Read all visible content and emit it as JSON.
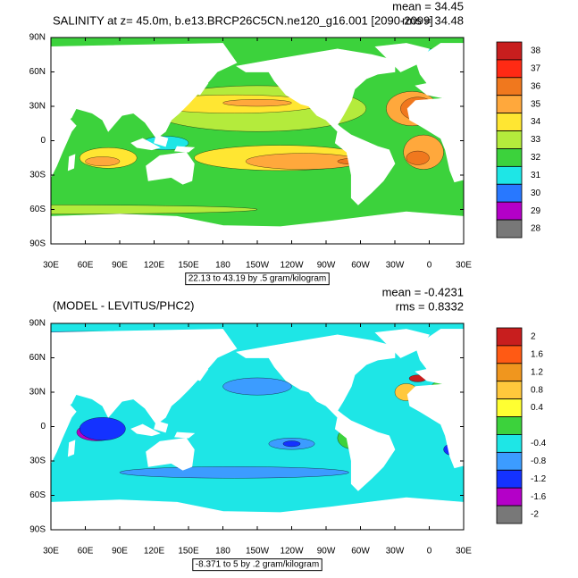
{
  "panels": [
    {
      "title": "SALINITY at z=  45.0m, b.e13.BRCP26C5CN.ne120_g16.001 [2090-2099]",
      "stats": [
        "mean = 34.45",
        "rms = 34.48"
      ],
      "info": "22.13 to 43.19 by .5 gram/kilogram",
      "colorbar": {
        "labels": [
          "38",
          "37",
          "36",
          "35",
          "34",
          "33",
          "32",
          "31",
          "30",
          "29",
          "28"
        ],
        "colors": [
          "#c81e1e",
          "#ff2a14",
          "#f0781e",
          "#ffa83c",
          "#ffe632",
          "#b4eb3c",
          "#3cd23c",
          "#1ee6e6",
          "#2878ff",
          "#b400c8",
          "#787878"
        ]
      }
    },
    {
      "title": "(MODEL - LEVITUS/PHC2)",
      "stats": [
        "mean = -0.4231",
        "rms = 0.8332"
      ],
      "info": "-8.371 to 5 by .2 gram/kilogram",
      "colorbar": {
        "labels": [
          "2",
          "1.6",
          "1.2",
          "0.8",
          "0.4",
          null,
          "-0.4",
          "-0.8",
          "-1.2",
          "-1.6",
          "-2"
        ],
        "colors": [
          "#c81e1e",
          "#ff5a14",
          "#f0961e",
          "#ffc83c",
          "#ffff32",
          "#3cd23c",
          "#1ee6e6",
          "#3c9cff",
          "#1432ff",
          "#b400c8",
          "#787878"
        ]
      }
    }
  ],
  "lat_labels": [
    "90N",
    "60N",
    "30N",
    "0",
    "30S",
    "60S",
    "90S"
  ],
  "lon_labels": [
    "30E",
    "60E",
    "90E",
    "120E",
    "150E",
    "180",
    "150W",
    "120W",
    "90W",
    "60W",
    "30W",
    "0",
    "30E"
  ]
}
